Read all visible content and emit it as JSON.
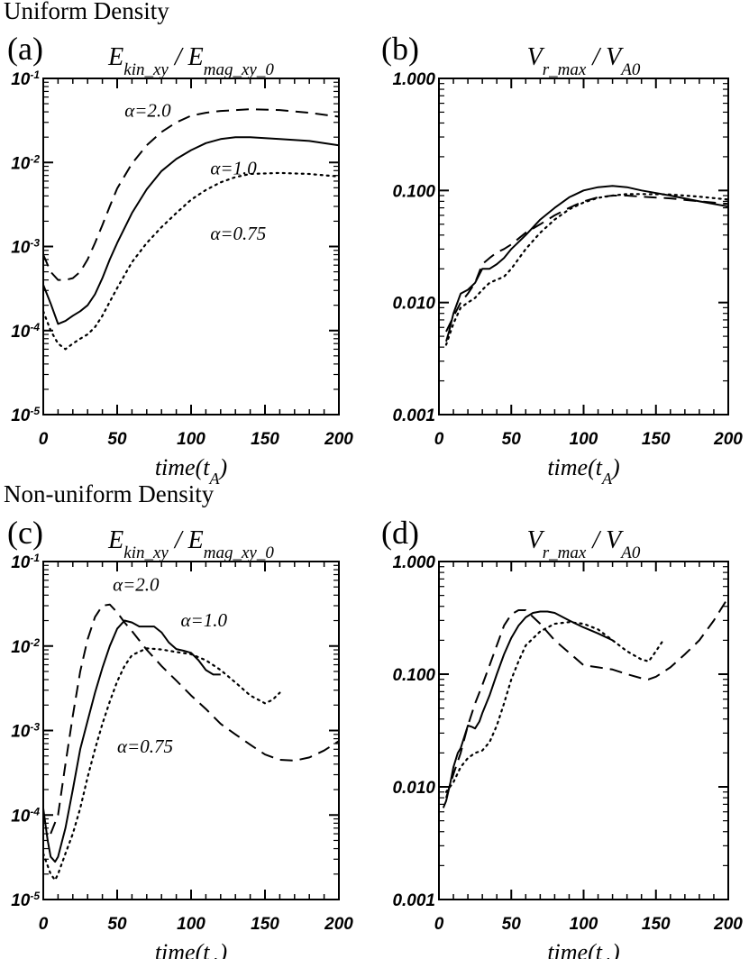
{
  "sections": {
    "uniform": "Uniform Density",
    "nonuniform": "Non-uniform Density"
  },
  "panels": {
    "a": "(a)",
    "b": "(b)",
    "c": "(c)",
    "d": "(d)"
  },
  "chart_data": [
    {
      "id": "a",
      "type": "line",
      "yscale": "log",
      "title": "E_kin_xy / E_mag_xy_0",
      "xlabel": "time(t_A)",
      "ylabel": "",
      "xlim": [
        0,
        200
      ],
      "ylim": [
        1e-05,
        0.1
      ],
      "xticks": [
        0,
        50,
        100,
        150,
        200
      ],
      "xtick_labels": [
        "0",
        "50",
        "100",
        "150",
        "200"
      ],
      "yticks": [
        0.1,
        0.01,
        0.001,
        0.0001,
        1e-05
      ],
      "ytick_labels": [
        "10^-1",
        "10^-2",
        "10^-3",
        "10^-4",
        "10^-5"
      ],
      "series": [
        {
          "name": "α=2.0",
          "style": "dashed",
          "x": [
            0,
            5,
            10,
            15,
            20,
            25,
            30,
            35,
            40,
            45,
            50,
            60,
            70,
            80,
            90,
            100,
            110,
            120,
            140,
            160,
            180,
            200
          ],
          "y": [
            0.0008,
            0.0005,
            0.0004,
            0.0004,
            0.00042,
            0.0005,
            0.0007,
            0.0011,
            0.0018,
            0.003,
            0.0049,
            0.0097,
            0.016,
            0.023,
            0.03,
            0.036,
            0.039,
            0.041,
            0.043,
            0.042,
            0.039,
            0.035
          ]
        },
        {
          "name": "α=1.0",
          "style": "solid",
          "x": [
            0,
            5,
            10,
            15,
            20,
            25,
            30,
            35,
            40,
            45,
            50,
            60,
            70,
            80,
            90,
            100,
            110,
            120,
            130,
            140,
            160,
            180,
            200
          ],
          "y": [
            0.00035,
            0.00021,
            0.00012,
            0.00013,
            0.00015,
            0.00017,
            0.0002,
            0.00027,
            0.00042,
            0.0007,
            0.0011,
            0.0025,
            0.0048,
            0.0079,
            0.011,
            0.014,
            0.017,
            0.019,
            0.02,
            0.02,
            0.019,
            0.018,
            0.016
          ]
        },
        {
          "name": "α=0.75",
          "style": "dotted",
          "x": [
            0,
            5,
            10,
            15,
            20,
            25,
            30,
            35,
            40,
            45,
            50,
            60,
            70,
            80,
            90,
            100,
            110,
            120,
            130,
            140,
            160,
            180,
            200
          ],
          "y": [
            0.00017,
            0.0001,
            7e-05,
            6e-05,
            7e-05,
            8e-05,
            9e-05,
            0.00011,
            0.00015,
            0.00022,
            0.00032,
            0.00065,
            0.0011,
            0.0017,
            0.0025,
            0.0036,
            0.0047,
            0.0058,
            0.0067,
            0.0073,
            0.0075,
            0.0073,
            0.0068
          ]
        }
      ],
      "annotations": [
        {
          "text": "α=2.0",
          "x": 55,
          "y": 0.035
        },
        {
          "text": "α=1.0",
          "x": 113,
          "y": 0.0072
        },
        {
          "text": "α=0.75",
          "x": 113,
          "y": 0.0012
        }
      ]
    },
    {
      "id": "b",
      "type": "line",
      "yscale": "log",
      "title": "V_r_max / V_A0",
      "xlabel": "time(t_A)",
      "ylabel": "",
      "xlim": [
        0,
        200
      ],
      "ylim": [
        0.001,
        1.0
      ],
      "xticks": [
        0,
        50,
        100,
        150,
        200
      ],
      "xtick_labels": [
        "0",
        "50",
        "100",
        "150",
        "200"
      ],
      "yticks": [
        1.0,
        0.1,
        0.01,
        0.001
      ],
      "ytick_labels": [
        "1.000",
        "0.100",
        "0.010",
        "0.001"
      ],
      "series": [
        {
          "name": "solid",
          "style": "solid",
          "x": [
            5,
            7,
            10,
            15,
            20,
            25,
            30,
            35,
            40,
            45,
            50,
            60,
            70,
            80,
            90,
            100,
            110,
            120,
            130,
            140,
            160,
            180,
            200
          ],
          "y": [
            0.0045,
            0.0055,
            0.008,
            0.012,
            0.013,
            0.015,
            0.02,
            0.02,
            0.022,
            0.025,
            0.03,
            0.04,
            0.055,
            0.07,
            0.087,
            0.1,
            0.107,
            0.11,
            0.107,
            0.1,
            0.09,
            0.08,
            0.072
          ]
        },
        {
          "name": "dashed",
          "style": "dashed",
          "x": [
            5,
            10,
            15,
            20,
            25,
            30,
            35,
            40,
            45,
            50,
            60,
            70,
            80,
            90,
            100,
            110,
            120,
            130,
            140,
            160,
            180,
            200
          ],
          "y": [
            0.0055,
            0.0075,
            0.01,
            0.012,
            0.015,
            0.022,
            0.025,
            0.028,
            0.03,
            0.033,
            0.042,
            0.05,
            0.06,
            0.07,
            0.08,
            0.087,
            0.09,
            0.09,
            0.088,
            0.085,
            0.08,
            0.076
          ]
        },
        {
          "name": "dotted",
          "style": "dotted",
          "x": [
            5,
            10,
            15,
            20,
            25,
            30,
            35,
            40,
            45,
            50,
            60,
            70,
            80,
            90,
            100,
            110,
            120,
            130,
            140,
            160,
            180,
            200
          ],
          "y": [
            0.0042,
            0.0065,
            0.009,
            0.01,
            0.011,
            0.013,
            0.015,
            0.016,
            0.017,
            0.02,
            0.03,
            0.042,
            0.055,
            0.068,
            0.078,
            0.086,
            0.09,
            0.093,
            0.093,
            0.092,
            0.088,
            0.083
          ]
        }
      ]
    },
    {
      "id": "c",
      "type": "line",
      "yscale": "log",
      "title": "E_kin_xy / E_mag_xy_0",
      "xlabel": "time(t_A)",
      "ylabel": "",
      "xlim": [
        0,
        200
      ],
      "ylim": [
        1e-05,
        0.1
      ],
      "xticks": [
        0,
        50,
        100,
        150,
        200
      ],
      "xtick_labels": [
        "0",
        "50",
        "100",
        "150",
        "200"
      ],
      "yticks": [
        0.1,
        0.01,
        0.001,
        0.0001,
        1e-05
      ],
      "ytick_labels": [
        "10^-1",
        "10^-2",
        "10^-3",
        "10^-4",
        "10^-5"
      ],
      "series": [
        {
          "name": "α=2.0",
          "style": "dashed",
          "x": [
            5,
            10,
            15,
            20,
            25,
            30,
            35,
            40,
            45,
            50,
            55,
            60,
            70,
            80,
            90,
            100,
            110,
            120,
            130,
            140,
            150,
            160,
            170,
            180,
            190,
            200
          ],
          "y": [
            6e-05,
            0.0001,
            0.0004,
            0.0015,
            0.005,
            0.012,
            0.022,
            0.03,
            0.031,
            0.025,
            0.019,
            0.015,
            0.009,
            0.0058,
            0.0039,
            0.0026,
            0.0018,
            0.0012,
            0.0009,
            0.00068,
            0.00052,
            0.00045,
            0.00044,
            0.00048,
            0.00058,
            0.00075
          ]
        },
        {
          "name": "α=1.0",
          "style": "solid",
          "x": [
            0,
            3,
            5,
            8,
            10,
            15,
            20,
            25,
            30,
            35,
            40,
            45,
            50,
            55,
            60,
            65,
            70,
            75,
            80,
            85,
            90,
            95,
            100,
            105,
            110,
            115,
            120
          ],
          "y": [
            0.00012,
            5e-05,
            3.2e-05,
            2.8e-05,
            3.2e-05,
            7e-05,
            0.0002,
            0.0006,
            0.0013,
            0.0028,
            0.0055,
            0.01,
            0.016,
            0.02,
            0.019,
            0.017,
            0.017,
            0.017,
            0.0145,
            0.011,
            0.0092,
            0.0088,
            0.0083,
            0.0068,
            0.0052,
            0.0046,
            0.0046
          ]
        },
        {
          "name": "α=0.75",
          "style": "dotted",
          "x": [
            0,
            5,
            8,
            10,
            15,
            20,
            25,
            30,
            35,
            40,
            45,
            50,
            55,
            60,
            70,
            80,
            90,
            100,
            110,
            120,
            130,
            140,
            150,
            155,
            160
          ],
          "y": [
            3.5e-05,
            2e-05,
            1.7e-05,
            2e-05,
            3.5e-05,
            6e-05,
            0.00012,
            0.00028,
            0.0006,
            0.0012,
            0.0022,
            0.0038,
            0.0058,
            0.0078,
            0.0094,
            0.0091,
            0.0085,
            0.008,
            0.0068,
            0.0052,
            0.0037,
            0.0026,
            0.0021,
            0.0023,
            0.0028
          ]
        }
      ],
      "annotations": [
        {
          "text": "α=2.0",
          "x": 47,
          "y": 0.045
        },
        {
          "text": "α=1.0",
          "x": 93,
          "y": 0.017
        },
        {
          "text": "α=0.75",
          "x": 50,
          "y": 0.00055
        }
      ]
    },
    {
      "id": "d",
      "type": "line",
      "yscale": "log",
      "title": "V_r_max / V_A0",
      "xlabel": "time(t_A)",
      "ylabel": "",
      "xlim": [
        0,
        200
      ],
      "ylim": [
        0.001,
        1.0
      ],
      "xticks": [
        0,
        50,
        100,
        150,
        200
      ],
      "xtick_labels": [
        "0",
        "50",
        "100",
        "150",
        "200"
      ],
      "yticks": [
        1.0,
        0.1,
        0.01,
        0.001
      ],
      "ytick_labels": [
        "1.000",
        "0.100",
        "0.010",
        "0.001"
      ],
      "series": [
        {
          "name": "solid",
          "style": "solid",
          "x": [
            3,
            5,
            8,
            10,
            13,
            15,
            20,
            23,
            25,
            28,
            30,
            35,
            40,
            45,
            50,
            55,
            60,
            65,
            70,
            75,
            80,
            90,
            100,
            110,
            120
          ],
          "y": [
            0.0065,
            0.0075,
            0.011,
            0.015,
            0.02,
            0.022,
            0.035,
            0.034,
            0.033,
            0.038,
            0.045,
            0.065,
            0.1,
            0.15,
            0.21,
            0.27,
            0.32,
            0.35,
            0.36,
            0.36,
            0.35,
            0.3,
            0.26,
            0.23,
            0.2
          ]
        },
        {
          "name": "dashed",
          "style": "dashed",
          "x": [
            5,
            10,
            15,
            20,
            25,
            30,
            35,
            40,
            45,
            50,
            55,
            60,
            70,
            80,
            90,
            100,
            110,
            120,
            130,
            140,
            145,
            150,
            160,
            170,
            180,
            190,
            200
          ],
          "y": [
            0.008,
            0.013,
            0.02,
            0.035,
            0.055,
            0.08,
            0.12,
            0.18,
            0.27,
            0.34,
            0.37,
            0.37,
            0.28,
            0.2,
            0.155,
            0.12,
            0.115,
            0.11,
            0.1,
            0.092,
            0.09,
            0.095,
            0.115,
            0.15,
            0.2,
            0.3,
            0.48
          ]
        },
        {
          "name": "dotted",
          "style": "dotted",
          "x": [
            5,
            10,
            15,
            20,
            25,
            30,
            35,
            40,
            45,
            50,
            55,
            60,
            70,
            80,
            90,
            100,
            110,
            120,
            130,
            140,
            145,
            150,
            155
          ],
          "y": [
            0.009,
            0.011,
            0.015,
            0.018,
            0.02,
            0.021,
            0.025,
            0.035,
            0.055,
            0.09,
            0.13,
            0.18,
            0.24,
            0.28,
            0.29,
            0.28,
            0.25,
            0.2,
            0.16,
            0.135,
            0.13,
            0.16,
            0.2
          ]
        }
      ]
    }
  ]
}
